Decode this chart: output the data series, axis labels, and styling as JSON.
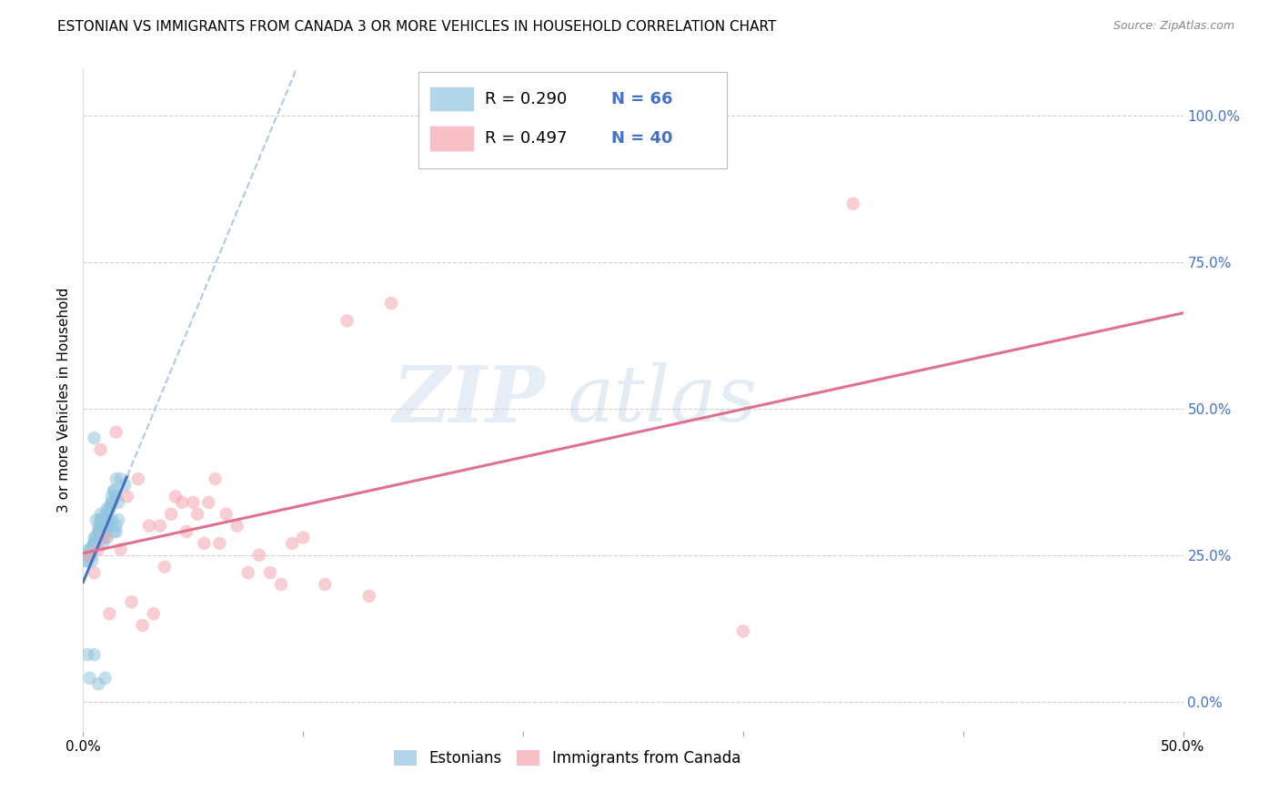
{
  "title": "ESTONIAN VS IMMIGRANTS FROM CANADA 3 OR MORE VEHICLES IN HOUSEHOLD CORRELATION CHART",
  "source": "Source: ZipAtlas.com",
  "ylabel": "3 or more Vehicles in Household",
  "R1": 0.29,
  "N1": 66,
  "R2": 0.497,
  "N2": 40,
  "color_blue": "#92c5de",
  "color_pink": "#f4a6b0",
  "color_blue_line": "#4472c4",
  "color_pink_line": "#e07090",
  "color_dashed_line": "#b0c8e8",
  "legend_label1": "Estonians",
  "legend_label2": "Immigrants from Canada",
  "background_color": "#ffffff",
  "grid_color": "#d0d0d0",
  "ytick_color": "#4472c4",
  "xlim": [
    0,
    50
  ],
  "ylim": [
    -5,
    108
  ],
  "blue_x": [
    0.2,
    0.3,
    0.4,
    0.4,
    0.5,
    0.5,
    0.5,
    0.5,
    0.6,
    0.6,
    0.6,
    0.7,
    0.7,
    0.7,
    0.8,
    0.8,
    0.8,
    0.8,
    0.9,
    0.9,
    0.9,
    0.9,
    1.0,
    1.0,
    1.0,
    1.0,
    1.0,
    1.1,
    1.1,
    1.1,
    1.2,
    1.2,
    1.3,
    1.3,
    1.3,
    1.4,
    1.4,
    1.5,
    1.5,
    1.5,
    1.6,
    1.6,
    1.7,
    1.9,
    0.1,
    0.2,
    0.3,
    0.3,
    0.4,
    0.4,
    0.5,
    0.6,
    0.7,
    0.8,
    0.9,
    1.0,
    1.1,
    1.2,
    1.3,
    1.4,
    1.5,
    0.2,
    0.3,
    0.5,
    0.7,
    1.0
  ],
  "blue_y": [
    25,
    26,
    24,
    26,
    27,
    28,
    27,
    45,
    27,
    28,
    31,
    29,
    30,
    29,
    29,
    31,
    32,
    30,
    27,
    28,
    30,
    31,
    30,
    32,
    30,
    29,
    31,
    28,
    31,
    33,
    30,
    33,
    31,
    35,
    34,
    29,
    36,
    29,
    30,
    38,
    31,
    34,
    38,
    37,
    24,
    24,
    25,
    26,
    25,
    26,
    27,
    28,
    29,
    31,
    30,
    31,
    32,
    33,
    34,
    36,
    35,
    8,
    4,
    8,
    3,
    4
  ],
  "pink_x": [
    0.3,
    0.5,
    0.7,
    0.8,
    1.0,
    1.2,
    1.5,
    1.7,
    2.0,
    2.2,
    2.5,
    2.7,
    3.0,
    3.2,
    3.5,
    3.7,
    4.0,
    4.2,
    4.5,
    4.7,
    5.0,
    5.2,
    5.5,
    5.7,
    6.0,
    6.2,
    6.5,
    7.0,
    7.5,
    8.0,
    8.5,
    9.0,
    9.5,
    10.0,
    11.0,
    12.0,
    13.0,
    14.0,
    30.0,
    35.0
  ],
  "pink_y": [
    25,
    22,
    26,
    43,
    28,
    15,
    46,
    26,
    35,
    17,
    38,
    13,
    30,
    15,
    30,
    23,
    32,
    35,
    34,
    29,
    34,
    32,
    27,
    34,
    38,
    27,
    32,
    30,
    22,
    25,
    22,
    20,
    27,
    28,
    20,
    65,
    18,
    68,
    12,
    85
  ],
  "watermark_zip": "ZIP",
  "watermark_atlas": "atlas",
  "watermark_color_zip": "#c8d8ec",
  "watermark_color_atlas": "#b8cce0",
  "watermark_alpha": 0.45
}
